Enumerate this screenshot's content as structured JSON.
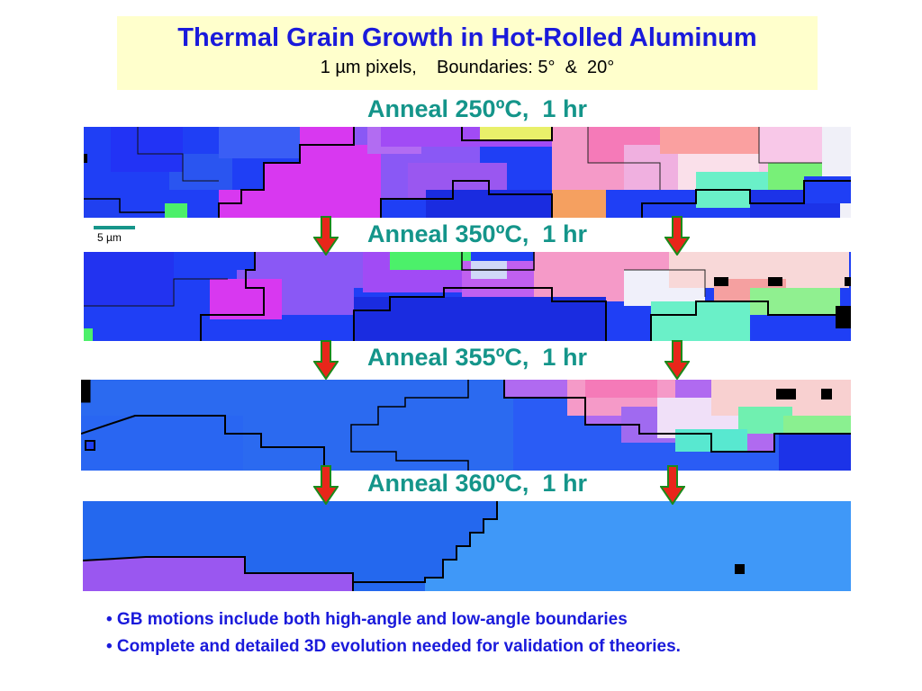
{
  "title": "Thermal Grain Growth in Hot-Rolled Aluminum",
  "subtitle": "1 µm pixels,    Boundaries: 5°  &  20°",
  "anneal_labels": [
    "Anneal 250ºC,  1 hr",
    "Anneal 350ºC,  1 hr",
    "Anneal 355ºC,  1 hr",
    "Anneal 360ºC,  1 hr"
  ],
  "scale_label": "5 µm",
  "bullets": [
    "• GB motions include both high-angle and low-angle boundaries",
    "• Complete and detailed 3D evolution needed for validation of theories."
  ],
  "colors": {
    "title": "#1a1adb",
    "label": "#14958a",
    "title_background": "#ffffcc",
    "arrow_fill": "#e8261a",
    "arrow_outline": "#1a8a1a",
    "grain_blue": "#1f3ff5",
    "grain_light_blue": "#3f98f8",
    "grain_violet": "#9a57f0",
    "grain_magenta": "#d838f0",
    "grain_pink": "#f59ac8",
    "grain_green": "#4cf06a",
    "grain_cyan": "#6af0c8",
    "boundary": "#000000"
  }
}
